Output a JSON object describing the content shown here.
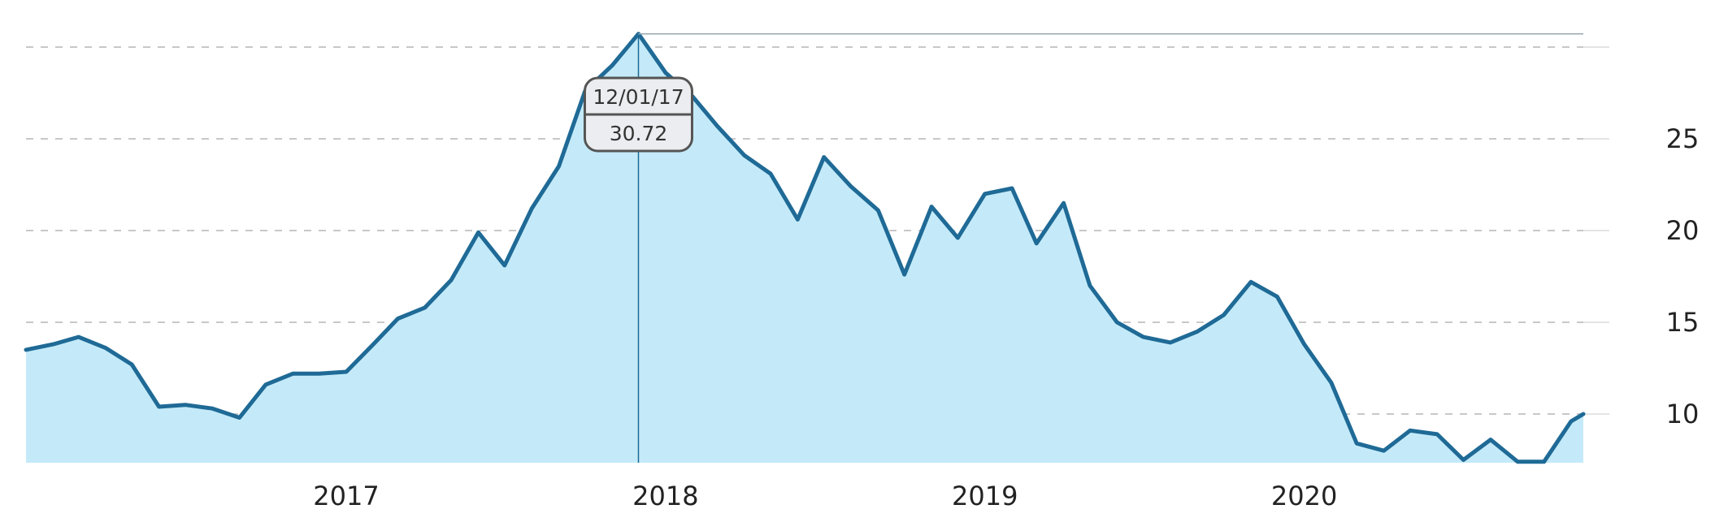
{
  "chart_data": {
    "type": "area",
    "title": "",
    "xlabel": "",
    "ylabel": "",
    "x_ticks": [
      "2017",
      "2018",
      "2019",
      "2020"
    ],
    "y_ticks": [
      10,
      15,
      20,
      25
    ],
    "ylim": [
      7.4,
      31
    ],
    "xlim": [
      "2016-01-01",
      "2020-11-15"
    ],
    "grid": true,
    "y_axis_position": "right",
    "x": [
      "2016-01-01",
      "2016-02-01",
      "2016-03-01",
      "2016-04-01",
      "2016-05-01",
      "2016-06-01",
      "2016-07-01",
      "2016-08-01",
      "2016-09-01",
      "2016-10-01",
      "2016-11-01",
      "2016-12-01",
      "2017-01-01",
      "2017-02-01",
      "2017-03-01",
      "2017-04-01",
      "2017-05-01",
      "2017-06-01",
      "2017-07-01",
      "2017-08-01",
      "2017-09-01",
      "2017-10-01",
      "2017-11-01",
      "2017-12-01",
      "2018-01-01",
      "2018-02-01",
      "2018-03-01",
      "2018-04-01",
      "2018-05-01",
      "2018-06-01",
      "2018-07-01",
      "2018-08-01",
      "2018-09-01",
      "2018-10-01",
      "2018-11-01",
      "2018-12-01",
      "2019-01-01",
      "2019-02-01",
      "2019-03-01",
      "2019-04-01",
      "2019-05-01",
      "2019-06-01",
      "2019-07-01",
      "2019-08-01",
      "2019-09-01",
      "2019-10-01",
      "2019-11-01",
      "2019-12-01",
      "2020-01-01",
      "2020-02-01",
      "2020-03-01",
      "2020-04-01",
      "2020-05-01",
      "2020-06-01",
      "2020-07-01",
      "2020-08-01",
      "2020-09-01",
      "2020-10-01",
      "2020-11-01",
      "2020-11-15"
    ],
    "series": [
      {
        "values": [
          13.5,
          13.8,
          14.2,
          13.6,
          12.7,
          10.4,
          10.5,
          10.3,
          9.8,
          11.6,
          12.2,
          12.2,
          12.3,
          13.8,
          15.2,
          15.8,
          17.3,
          19.9,
          18.1,
          21.2,
          23.5,
          27.6,
          29.0,
          30.72,
          28.6,
          27.3,
          25.7,
          24.1,
          23.1,
          20.6,
          24.0,
          22.4,
          21.1,
          17.6,
          21.3,
          19.6,
          22.0,
          22.3,
          19.3,
          21.5,
          17.0,
          15.0,
          14.2,
          13.9,
          14.5,
          15.4,
          17.2,
          16.4,
          13.8,
          11.7,
          8.4,
          8.0,
          9.1,
          8.9,
          7.5,
          8.6,
          7.4,
          7.4,
          9.6,
          10.0
        ]
      }
    ],
    "tooltip": {
      "date": "12/01/17",
      "value": "30.72",
      "x": "2017-12-01"
    },
    "colors": {
      "line": "#1f6a96",
      "area": "#c4eaf9",
      "grid": "#c8c8c8"
    }
  }
}
